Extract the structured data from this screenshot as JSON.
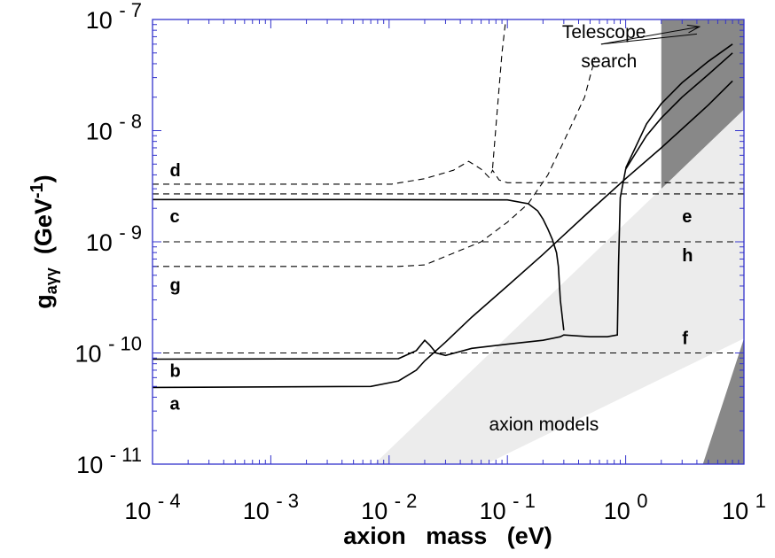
{
  "chart_data": {
    "type": "line",
    "title": "",
    "xlabel": "axion   mass   (eV)",
    "ylabel": {
      "main": "g",
      "sub": "aγγ",
      "unit_prefix": "(GeV",
      "unit_exp": "-1",
      "unit_suffix": ")"
    },
    "x_scale": "log",
    "y_scale": "log",
    "xlim": [
      0.0001,
      10
    ],
    "ylim": [
      1e-11,
      1e-07
    ],
    "x_ticks": [
      {
        "base": "10",
        "exp": "-4",
        "value": 0.0001
      },
      {
        "base": "10",
        "exp": "-3",
        "value": 0.001
      },
      {
        "base": "10",
        "exp": "-2",
        "value": 0.01
      },
      {
        "base": "10",
        "exp": "-1",
        "value": 0.1
      },
      {
        "base": "10",
        "exp": "0",
        "value": 1
      },
      {
        "base": "10",
        "exp": "1",
        "value": 10
      }
    ],
    "y_ticks": [
      {
        "base": "10",
        "exp": "-7",
        "value": 1e-07
      },
      {
        "base": "10",
        "exp": "-8",
        "value": 1e-08
      },
      {
        "base": "10",
        "exp": "-9",
        "value": 1e-09
      },
      {
        "base": "10",
        "exp": "-10",
        "value": 1e-10
      },
      {
        "base": "10",
        "exp": "-11",
        "value": 1e-11
      }
    ],
    "curve_labels": [
      {
        "text": "d",
        "x": 0.00014,
        "y": 3.9e-09
      },
      {
        "text": "c",
        "x": 0.00014,
        "y": 1.5e-09
      },
      {
        "text": "g",
        "x": 0.00014,
        "y": 3.6e-10
      },
      {
        "text": "b",
        "x": 0.00014,
        "y": 6.1e-11
      },
      {
        "text": "a",
        "x": 0.00014,
        "y": 3.1e-11
      },
      {
        "text": "e",
        "x": 3.0,
        "y": 1.5e-09
      },
      {
        "text": "h",
        "x": 3.0,
        "y": 6.7e-10
      },
      {
        "text": "f",
        "x": 3.0,
        "y": 1.2e-10
      }
    ],
    "annotations": [
      {
        "text": "Telescope",
        "x": 0.29,
        "y": 6.8e-08
      },
      {
        "text": "search",
        "x": 0.42,
        "y": 3.7e-08
      },
      {
        "text": "axion models",
        "x": 0.07,
        "y": 2e-11
      }
    ],
    "series": [
      {
        "name": "",
        "style": "dashed",
        "x": [
          0.0001,
          10
        ],
        "y": [
          1e-09,
          1e-09
        ]
      },
      {
        "name": "",
        "style": "dashed",
        "x": [
          0.0001,
          10
        ],
        "y": [
          1e-10,
          1e-10
        ]
      },
      {
        "name": "",
        "style": "dashed",
        "x": [
          0.0001,
          10
        ],
        "y": [
          2.7e-09,
          2.7e-09
        ]
      },
      {
        "name": "",
        "style": "dashed",
        "x": [
          0.0001,
          0.0105,
          0.02,
          0.035,
          0.047,
          0.06,
          0.07,
          0.075,
          0.085,
          0.1,
          10
        ],
        "y": [
          3.3e-09,
          3.3e-09,
          3.7e-09,
          4.4e-09,
          5.3e-09,
          4.5e-09,
          3.8e-09,
          4.4e-09,
          3.6e-09,
          3.4e-09,
          3.4e-09
        ]
      },
      {
        "name": "",
        "style": "dashed",
        "x": [
          0.075,
          0.082,
          0.09,
          0.097
        ],
        "y": [
          4.6e-09,
          1.5e-08,
          5e-08,
          1e-07
        ]
      },
      {
        "name": "",
        "style": "dashed",
        "x": [
          0.0001,
          0.012,
          0.02,
          0.06,
          0.1,
          0.15,
          0.22,
          0.3,
          0.45,
          0.55
        ],
        "y": [
          6e-10,
          6e-10,
          6.2e-10,
          1e-09,
          1.5e-09,
          2.2e-09,
          4e-09,
          8e-09,
          2e-08,
          4.5e-08
        ]
      },
      {
        "name": "",
        "style": "solid",
        "x": [
          0.0001,
          0.005,
          0.1,
          0.15,
          0.18,
          0.2,
          0.22,
          0.24,
          0.26,
          0.27,
          0.28,
          0.3
        ],
        "y": [
          2.4e-09,
          2.4e-09,
          2.38e-09,
          2.2e-09,
          1.9e-09,
          1.6e-09,
          1.3e-09,
          1.05e-09,
          8e-10,
          6e-10,
          3e-10,
          1.6e-10
        ]
      },
      {
        "name": "",
        "style": "solid",
        "x": [
          0.0001,
          0.012,
          0.017,
          0.02,
          0.022,
          0.025,
          0.03,
          0.05,
          0.1,
          0.2,
          0.28,
          0.3,
          0.5,
          0.7,
          0.85,
          0.87,
          0.9,
          1.0,
          1.5,
          2.0,
          3.0,
          5.0,
          8.0
        ],
        "y": [
          8.8e-11,
          8.9e-11,
          1.05e-10,
          1.3e-10,
          1.18e-10,
          1e-10,
          9.5e-11,
          1.1e-10,
          1.2e-10,
          1.3e-10,
          1.4e-10,
          1.45e-10,
          1.4e-10,
          1.4e-10,
          1.45e-10,
          6e-10,
          2.5e-09,
          4.5e-09,
          9e-09,
          1.3e-08,
          2e-08,
          3.2e-08,
          5e-08
        ]
      },
      {
        "name": "",
        "style": "solid",
        "x": [
          0.0001,
          0.007,
          0.012,
          0.017,
          0.02,
          0.03,
          0.05,
          0.1,
          0.2,
          0.3,
          0.5,
          1.0,
          2.0,
          5.0,
          8.0
        ],
        "y": [
          4.9e-11,
          5e-11,
          5.6e-11,
          7e-11,
          8.5e-11,
          1.25e-10,
          2.1e-10,
          4e-10,
          7.7e-10,
          1.15e-09,
          1.9e-09,
          3.7e-09,
          7e-09,
          1.7e-08,
          2.8e-08
        ]
      },
      {
        "name": "",
        "style": "solid",
        "x": [
          1.0,
          1.5,
          2.0,
          3.0,
          5.0,
          8.0
        ],
        "y": [
          4.6e-09,
          1.15e-08,
          1.75e-08,
          2.7e-08,
          4.2e-08,
          6e-08
        ]
      }
    ],
    "regions": [
      {
        "name": "axion models band",
        "fill": "#ececec",
        "x": [
          0.0075,
          0.066,
          10,
          10
        ],
        "y": [
          1e-11,
          1e-11,
          1.35e-10,
          1.55e-08
        ]
      },
      {
        "name": "telescope search excluded (upper)",
        "fill": "#888888",
        "x": [
          2,
          10,
          10,
          2
        ],
        "y": [
          1e-07,
          1e-07,
          1.55e-08,
          3e-09
        ]
      },
      {
        "name": "telescope search excluded (lower)",
        "fill": "#888888",
        "x": [
          4.5,
          10,
          10
        ],
        "y": [
          1e-11,
          1e-11,
          1.35e-10
        ]
      }
    ],
    "colors": {
      "frame": "#3333cc",
      "curves": "#000000",
      "band": "#ececec",
      "hatch": "#555555"
    }
  }
}
